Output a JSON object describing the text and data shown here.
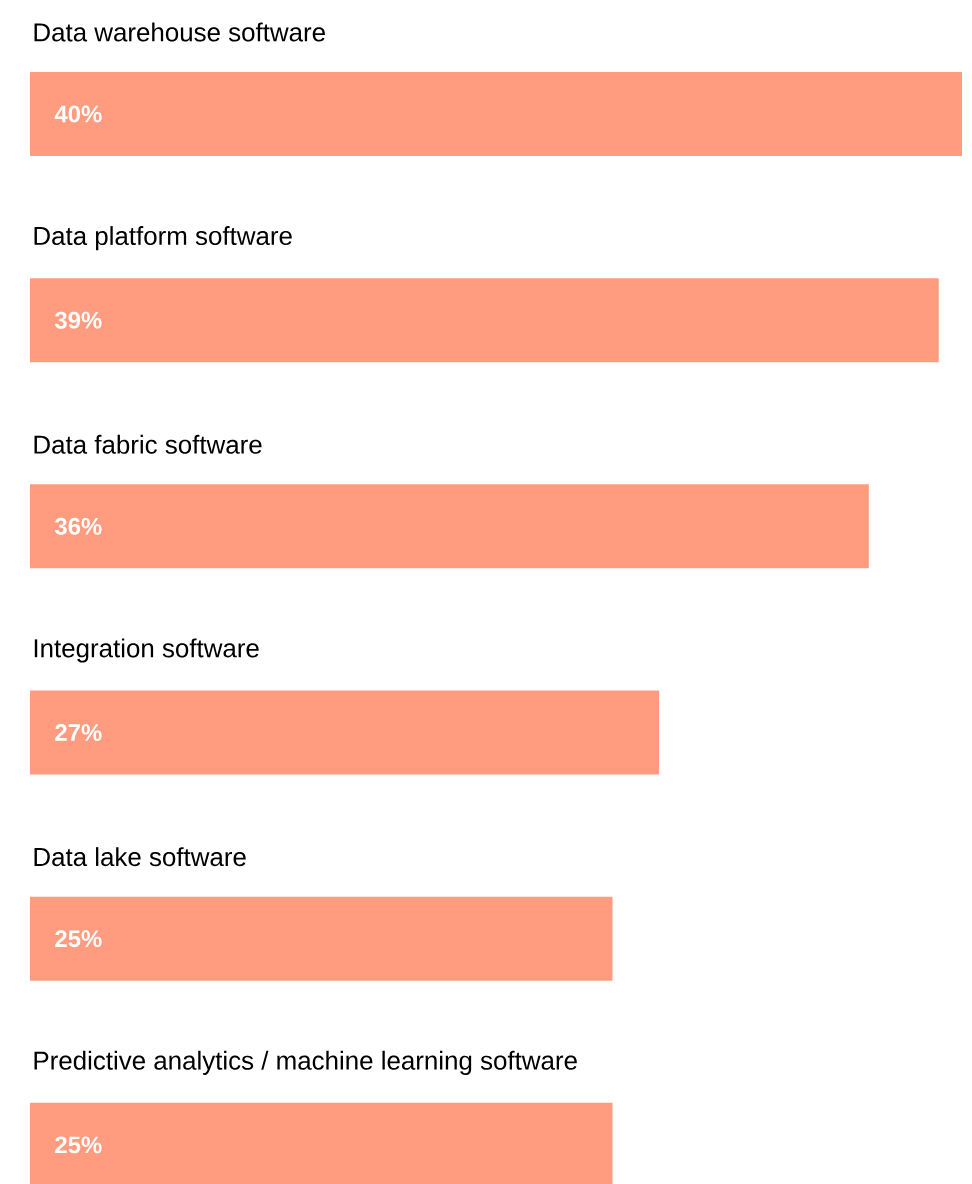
{
  "chart_data": {
    "type": "bar",
    "orientation": "horizontal",
    "categories": [
      "Data warehouse software",
      "Data platform software",
      "Data fabric software",
      "Integration software",
      "Data lake software",
      "Predictive analytics / machine learning software"
    ],
    "values": [
      40,
      39,
      36,
      27,
      25,
      25
    ],
    "value_labels": [
      "40%",
      "39%",
      "36%",
      "27%",
      "25%",
      "25%"
    ],
    "color": "#ff9b7f"
  }
}
